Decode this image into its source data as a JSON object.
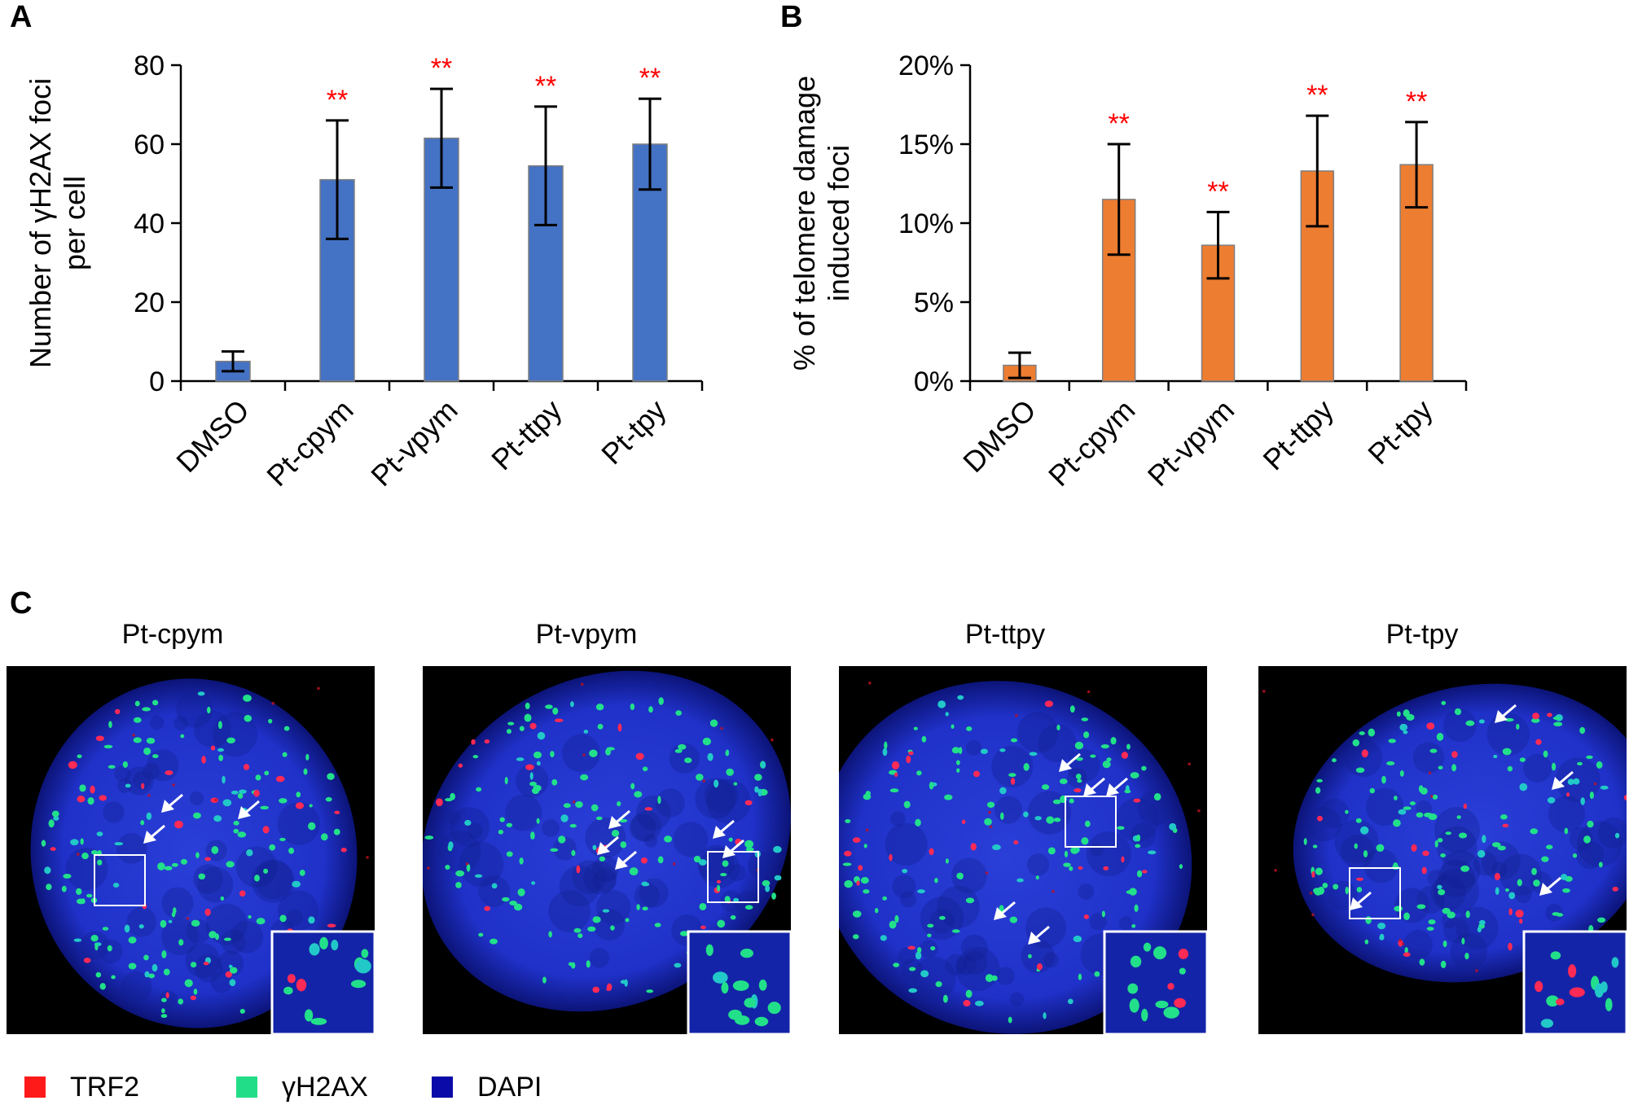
{
  "panels": {
    "a": "A",
    "b": "B",
    "c": "C"
  },
  "chart_data": [
    {
      "type": "bar",
      "categories": [
        "DMSO",
        "Pt-cpym",
        "Pt-vpym",
        "Pt-ttpy",
        "Pt-tpy"
      ],
      "values": [
        5,
        51,
        61.5,
        54.5,
        60
      ],
      "errors": [
        2.5,
        15,
        12.5,
        15,
        11.5
      ],
      "significance": [
        "",
        "**",
        "**",
        "**",
        "**"
      ],
      "ylabel": "Number of γH2AX foci per cell",
      "ylabel_lines": [
        "Number of γH2AX foci",
        "per cell"
      ],
      "ylim": [
        0,
        80
      ],
      "yticks": [
        0,
        20,
        40,
        60,
        80
      ],
      "ytick_labels": [
        "0",
        "20",
        "40",
        "60",
        "80"
      ],
      "bar_color": "#4472c4",
      "grid": false
    },
    {
      "type": "bar",
      "categories": [
        "DMSO",
        "Pt-cpym",
        "Pt-vpym",
        "Pt-ttpy",
        "Pt-tpy"
      ],
      "values": [
        1,
        11.5,
        8.6,
        13.3,
        13.7
      ],
      "errors": [
        0.8,
        3.5,
        2.1,
        3.5,
        2.7
      ],
      "significance": [
        "",
        "**",
        "**",
        "**",
        "**"
      ],
      "ylabel": "% of telomere damage induced foci",
      "ylabel_lines": [
        "% of telomere damage",
        "induced foci"
      ],
      "ylim": [
        0,
        20
      ],
      "yticks": [
        0,
        5,
        10,
        15,
        20
      ],
      "ytick_labels": [
        "0%",
        "5%",
        "10%",
        "15%",
        "20%"
      ],
      "bar_color": "#ed7d31",
      "grid": false
    }
  ],
  "microscopy": {
    "images": [
      {
        "title": "Pt-cpym"
      },
      {
        "title": "Pt-vpym"
      },
      {
        "title": "Pt-ttpy"
      },
      {
        "title": "Pt-tpy"
      }
    ]
  },
  "legend": [
    {
      "label": "TRF2",
      "color": "#ff1a1a"
    },
    {
      "label": "γH2AX",
      "color": "#22dd88"
    },
    {
      "label": "DAPI",
      "color": "#0a0aa8"
    }
  ],
  "colors": {
    "significance": "#ff0000",
    "axis": "#000000"
  }
}
